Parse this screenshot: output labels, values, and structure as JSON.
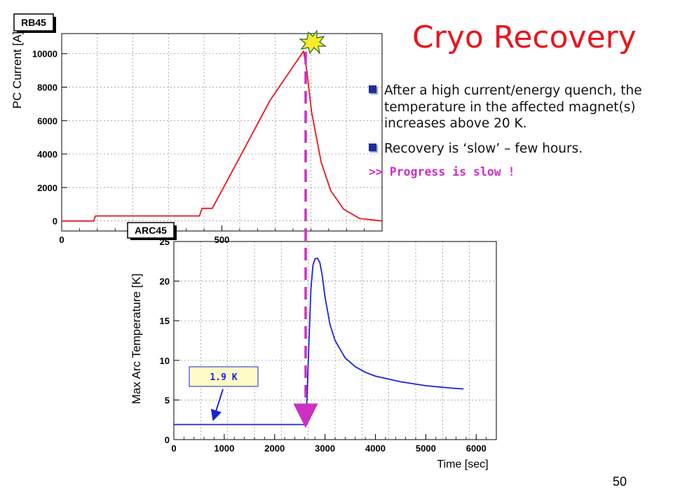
{
  "slide": {
    "title": "Cryo Recovery",
    "bullets": [
      "After a high current/energy quench, the temperature in the affected magnet(s) increases above 20 K.",
      "Recovery is ‘slow’ – few hours."
    ],
    "progress_note": ">> Progress is slow !",
    "page_number": "50",
    "colors": {
      "title": "#e8161c",
      "progress": "#cc2fc2",
      "current": "#e8161c",
      "temperature": "#1a24d8",
      "arrow": "#cc2fc2"
    }
  },
  "chart_data": [
    {
      "type": "line",
      "tag": "RB45",
      "ylabel": "PC Current [A]",
      "xlim": [
        0,
        1000
      ],
      "ylim": [
        -600,
        11200
      ],
      "yticks": [
        0,
        2000,
        4000,
        6000,
        8000,
        10000
      ],
      "xticks": [
        0,
        500
      ],
      "grid": true,
      "series": [
        {
          "color": "#e8161c",
          "x": [
            0,
            50,
            100,
            105,
            300,
            430,
            438,
            453,
            470,
            550,
            650,
            755,
            765,
            780,
            810,
            840,
            880,
            930,
            1000
          ],
          "y": [
            0,
            0,
            0,
            300,
            300,
            300,
            750,
            750,
            750,
            3600,
            7200,
            10150,
            9000,
            6500,
            3500,
            1800,
            700,
            150,
            0
          ]
        }
      ],
      "annotation": "quench-burst-icon"
    },
    {
      "type": "line",
      "tag": "ARC45",
      "xlabel": "Time [sec]",
      "ylabel": "Max Arc Temperature [K]",
      "xlim": [
        0,
        6400
      ],
      "ylim": [
        0,
        25
      ],
      "xticks": [
        0,
        1000,
        2000,
        3000,
        4000,
        5000,
        6000
      ],
      "yticks": [
        0,
        5,
        10,
        15,
        20,
        25
      ],
      "grid": true,
      "series": [
        {
          "color": "#1a24d8",
          "x": [
            0,
            2600,
            2640,
            2680,
            2720,
            2760,
            2800,
            2850,
            2900,
            2950,
            3000,
            3100,
            3200,
            3400,
            3600,
            3800,
            4000,
            4500,
            5000,
            5500,
            5750
          ],
          "y": [
            1.9,
            1.9,
            5,
            12,
            19,
            22,
            22.8,
            22.9,
            22.3,
            20.5,
            18,
            14.5,
            12.5,
            10.3,
            9.2,
            8.5,
            8.0,
            7.3,
            6.8,
            6.5,
            6.4
          ]
        }
      ],
      "annotation": "1.9 K"
    }
  ]
}
